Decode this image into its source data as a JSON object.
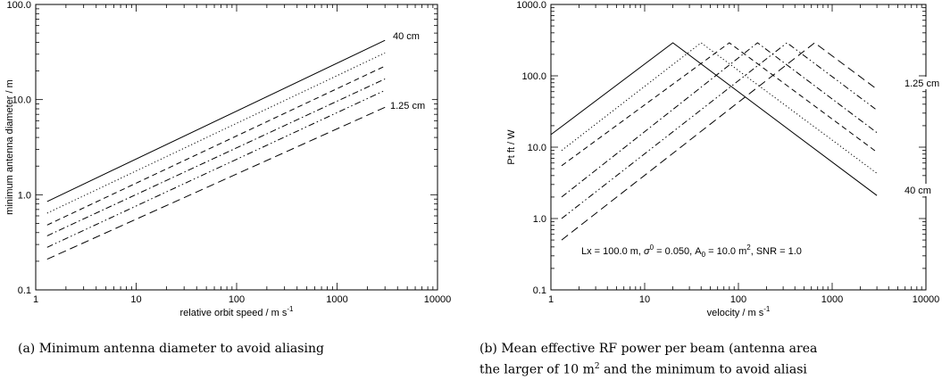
{
  "chart_data": [
    {
      "type": "line",
      "title": "",
      "xlabel": "relative orbit speed / m s",
      "xlabel_sup": "-1",
      "ylabel": "minimum antenna diameter / m",
      "x_scale": "log",
      "y_scale": "log",
      "xlim": [
        1,
        10000
      ],
      "ylim": [
        0.1,
        100
      ],
      "x_ticks": [
        "1",
        "10",
        "100",
        "1000",
        "10000"
      ],
      "y_ticks": [
        "0.1",
        "1.0",
        "10.0",
        "100.0"
      ],
      "grid": false,
      "legend": "none",
      "annotations": [
        {
          "text": "40 cm",
          "x": 3000,
          "y": 42
        },
        {
          "text": "1.25 cm",
          "x": 3000,
          "y": 8.3
        }
      ],
      "series": [
        {
          "style": "solid",
          "x": [
            1.3,
            3000
          ],
          "y": [
            0.85,
            42
          ]
        },
        {
          "style": "dotted",
          "x": [
            1.3,
            3000
          ],
          "y": [
            0.64,
            31
          ]
        },
        {
          "style": "dashed",
          "x": [
            1.3,
            3000
          ],
          "y": [
            0.48,
            22.5
          ]
        },
        {
          "style": "dashdot",
          "x": [
            1.3,
            3000
          ],
          "y": [
            0.37,
            16.5
          ]
        },
        {
          "style": "dashdotdot",
          "x": [
            1.3,
            3000
          ],
          "y": [
            0.28,
            12.5
          ]
        },
        {
          "style": "longdash",
          "x": [
            1.3,
            3000
          ],
          "y": [
            0.21,
            8.3
          ]
        }
      ]
    },
    {
      "type": "line",
      "title": "",
      "xlabel": "velocity / m s",
      "xlabel_sup": "-1",
      "ylabel": "Pt ft / W",
      "x_scale": "log",
      "y_scale": "log",
      "xlim": [
        1,
        10000
      ],
      "ylim": [
        0.1,
        1000
      ],
      "x_ticks": [
        "1",
        "10",
        "100",
        "1000",
        "10000"
      ],
      "y_ticks": [
        "0.1",
        "1.0",
        "10.0",
        "100.0",
        "1000.0"
      ],
      "grid": false,
      "legend": "none",
      "annotation_text": {
        "lx": "Lx =  100.0 m, ",
        "sigma": "σ",
        "sigma_sup": "0",
        "sigma_val": " =  0.050, A",
        "a_sub": "0",
        "a_val": " = 10.0 m",
        "a_sup": "2",
        "snr": ", SNR =  1.0"
      },
      "annotations": [
        {
          "text": "1.25 cm",
          "x": 3000,
          "y": 65
        },
        {
          "text": "40 cm",
          "x": 3000,
          "y": 2.1
        }
      ],
      "series": [
        {
          "style": "solid",
          "x": [
            1,
            20,
            3000
          ],
          "y": [
            15,
            290,
            2.1
          ]
        },
        {
          "style": "dotted",
          "x": [
            1.3,
            40,
            3000
          ],
          "y": [
            9,
            290,
            4.3
          ]
        },
        {
          "style": "dashed",
          "x": [
            1.3,
            80,
            3000
          ],
          "y": [
            5.5,
            290,
            8.5
          ]
        },
        {
          "style": "dashdot",
          "x": [
            1.3,
            160,
            3000
          ],
          "y": [
            2,
            290,
            16
          ]
        },
        {
          "style": "dashdotdot",
          "x": [
            1.3,
            330,
            3000
          ],
          "y": [
            1,
            290,
            33
          ]
        },
        {
          "style": "longdash",
          "x": [
            1.3,
            650,
            3000
          ],
          "y": [
            0.5,
            290,
            65
          ]
        }
      ]
    }
  ],
  "captions": {
    "a": "(a) Minimum antenna diameter to avoid aliasing",
    "b": "(b) Mean effective RF power per beam (antenna area",
    "b_line2_pre": "the larger of 10 m",
    "b_line2_sup": "2",
    "b_line2_post": " and the minimum to avoid aliasi"
  }
}
